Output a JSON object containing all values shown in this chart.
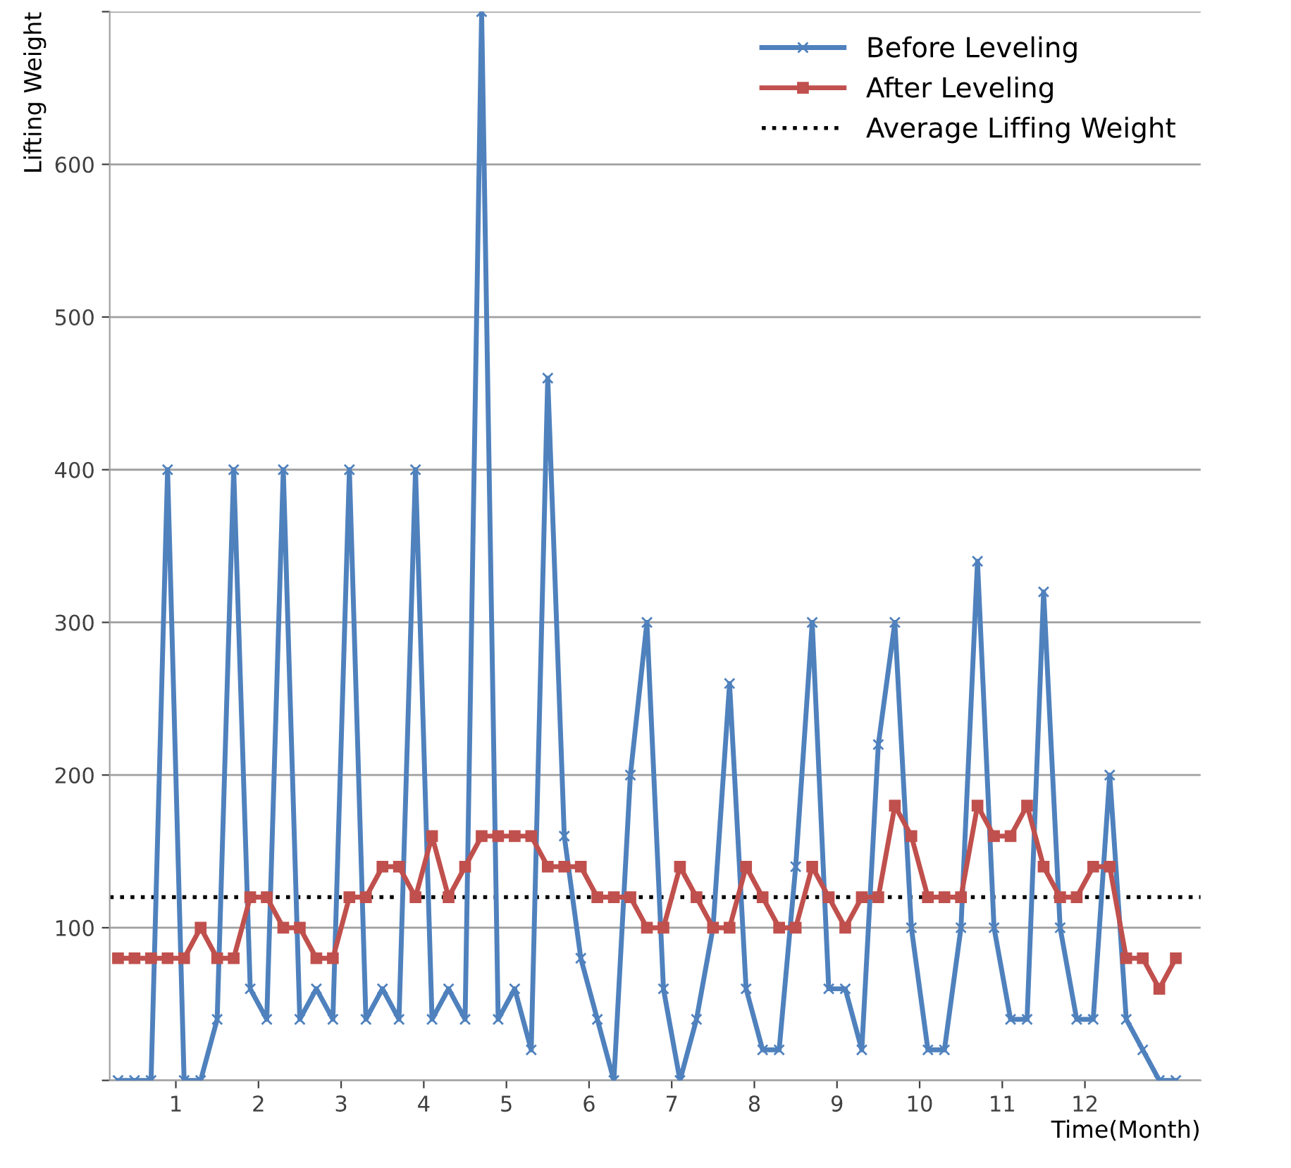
{
  "chart_data": {
    "type": "line",
    "xlabel": "Time(Month)",
    "ylabel": "Lifting Weight",
    "x": [
      0.3,
      0.5,
      0.7,
      0.9,
      1.1,
      1.3,
      1.5,
      1.7,
      1.9,
      2.1,
      2.3,
      2.5,
      2.7,
      2.9,
      3.1,
      3.3,
      3.5,
      3.7,
      3.9,
      4.1,
      4.3,
      4.5,
      4.7,
      4.9,
      5.1,
      5.3,
      5.5,
      5.7,
      5.9,
      6.1,
      6.3,
      6.5,
      6.7,
      6.9,
      7.1,
      7.3,
      7.5,
      7.7,
      7.9,
      8.1,
      8.3,
      8.5,
      8.7,
      8.9,
      9.1,
      9.3,
      9.5,
      9.7,
      9.9,
      10.1,
      10.3,
      10.5,
      10.7,
      10.9,
      11.1,
      11.3,
      11.5,
      11.7,
      11.9,
      12.1,
      12.3,
      12.5,
      12.7,
      12.9,
      13.1
    ],
    "series": [
      {
        "name": "Before Leveling",
        "color": "#4f81bd",
        "marker": "cross",
        "values": [
          0,
          0,
          0,
          400,
          0,
          0,
          40,
          400,
          60,
          40,
          400,
          40,
          60,
          40,
          400,
          40,
          60,
          40,
          400,
          40,
          60,
          40,
          700,
          40,
          60,
          20,
          460,
          160,
          80,
          40,
          0,
          200,
          300,
          60,
          0,
          40,
          100,
          260,
          60,
          20,
          20,
          140,
          300,
          60,
          60,
          20,
          220,
          300,
          100,
          20,
          20,
          100,
          340,
          100,
          40,
          40,
          320,
          100,
          40,
          40,
          200,
          40,
          20,
          0,
          0
        ]
      },
      {
        "name": "After Leveling",
        "color": "#c0504d",
        "marker": "square",
        "values": [
          80,
          80,
          80,
          80,
          80,
          100,
          80,
          80,
          120,
          120,
          100,
          100,
          80,
          80,
          120,
          120,
          140,
          140,
          120,
          160,
          120,
          140,
          160,
          160,
          160,
          160,
          140,
          140,
          140,
          120,
          120,
          120,
          100,
          100,
          140,
          120,
          100,
          100,
          140,
          120,
          100,
          100,
          140,
          120,
          100,
          120,
          120,
          180,
          160,
          120,
          120,
          120,
          180,
          160,
          160,
          180,
          140,
          120,
          120,
          140,
          140,
          80,
          80,
          60,
          80
        ]
      }
    ],
    "ref_lines": [
      {
        "axis": "y",
        "value": 120,
        "label": "Average Liffing Weight",
        "color": "#000000",
        "line_style": "dotted"
      }
    ],
    "xlim": [
      0.2,
      13.4
    ],
    "xticks": [
      1,
      2,
      3,
      4,
      5,
      6,
      7,
      8,
      9,
      10,
      11,
      12
    ],
    "ylim": [
      0,
      700
    ],
    "yticks": [
      {
        "value": 0,
        "label": null
      },
      100,
      200,
      300,
      400,
      500,
      600,
      {
        "value": 700,
        "label": null
      }
    ],
    "grid": "y",
    "legend": "top right"
  }
}
